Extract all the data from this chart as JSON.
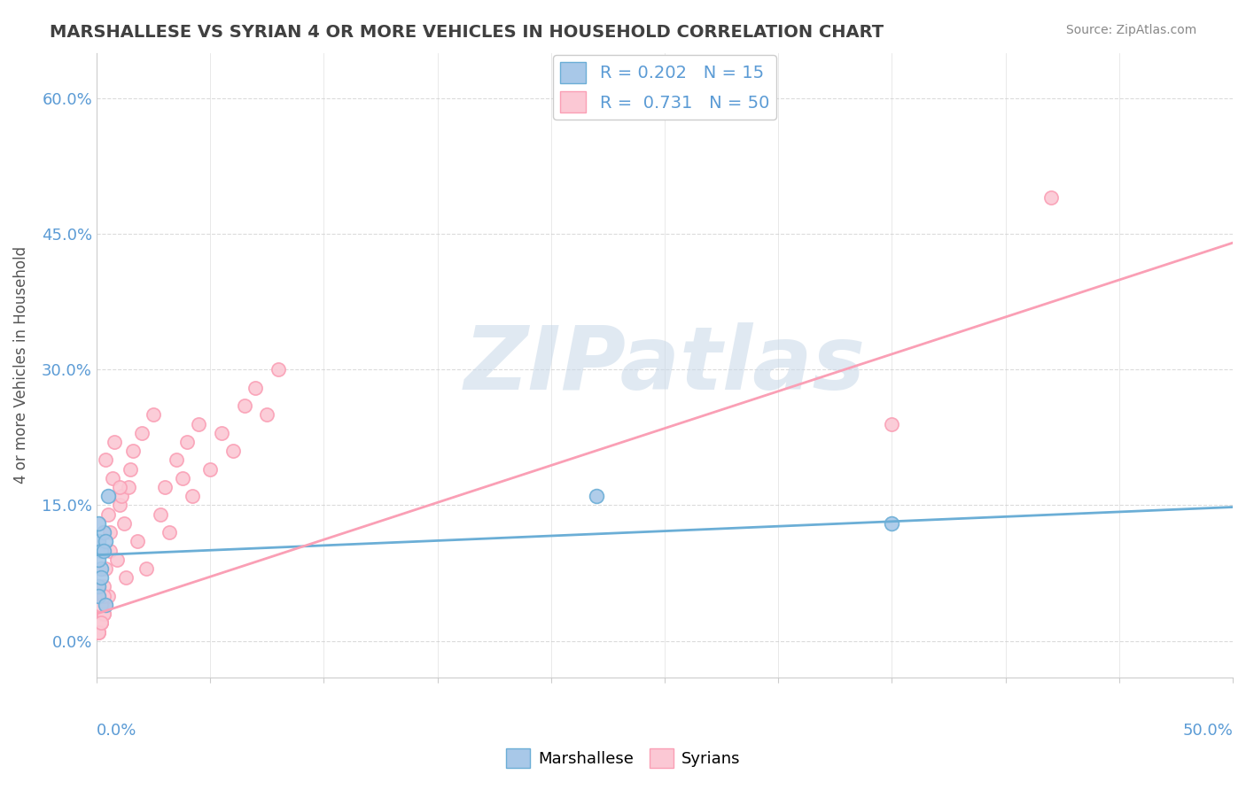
{
  "title": "MARSHALLESE VS SYRIAN 4 OR MORE VEHICLES IN HOUSEHOLD CORRELATION CHART",
  "source_text": "Source: ZipAtlas.com",
  "ylabel": "4 or more Vehicles in Household",
  "ytick_labels": [
    "0.0%",
    "15.0%",
    "30.0%",
    "45.0%",
    "60.0%"
  ],
  "ytick_values": [
    0.0,
    0.15,
    0.3,
    0.45,
    0.6
  ],
  "xmin": 0.0,
  "xmax": 0.5,
  "ymin": -0.04,
  "ymax": 0.65,
  "marshallese_color": "#6baed6",
  "marshallese_fill": "#a8c8e8",
  "syrian_color": "#fa9fb5",
  "syrian_fill": "#fbc8d4",
  "marshallese_R": 0.202,
  "marshallese_N": 15,
  "syrian_R": 0.731,
  "syrian_N": 50,
  "marshallese_x": [
    0.001,
    0.002,
    0.001,
    0.003,
    0.002,
    0.001,
    0.004,
    0.002,
    0.001,
    0.003,
    0.001,
    0.35,
    0.22,
    0.004,
    0.005
  ],
  "marshallese_y": [
    0.11,
    0.08,
    0.06,
    0.12,
    0.1,
    0.09,
    0.11,
    0.07,
    0.13,
    0.1,
    0.05,
    0.13,
    0.16,
    0.04,
    0.16
  ],
  "syrian_x": [
    0.001,
    0.002,
    0.003,
    0.001,
    0.004,
    0.002,
    0.001,
    0.003,
    0.005,
    0.002,
    0.004,
    0.006,
    0.003,
    0.002,
    0.005,
    0.007,
    0.006,
    0.003,
    0.004,
    0.008,
    0.009,
    0.01,
    0.012,
    0.011,
    0.013,
    0.015,
    0.014,
    0.016,
    0.018,
    0.02,
    0.022,
    0.025,
    0.028,
    0.03,
    0.032,
    0.035,
    0.038,
    0.04,
    0.042,
    0.045,
    0.05,
    0.055,
    0.06,
    0.065,
    0.07,
    0.075,
    0.08,
    0.35,
    0.42,
    0.01
  ],
  "syrian_y": [
    0.01,
    0.02,
    0.03,
    0.01,
    0.04,
    0.02,
    0.01,
    0.03,
    0.05,
    0.02,
    0.08,
    0.12,
    0.06,
    0.04,
    0.14,
    0.18,
    0.1,
    0.05,
    0.2,
    0.22,
    0.09,
    0.15,
    0.13,
    0.16,
    0.07,
    0.19,
    0.17,
    0.21,
    0.11,
    0.23,
    0.08,
    0.25,
    0.14,
    0.17,
    0.12,
    0.2,
    0.18,
    0.22,
    0.16,
    0.24,
    0.19,
    0.23,
    0.21,
    0.26,
    0.28,
    0.25,
    0.3,
    0.24,
    0.49,
    0.17
  ],
  "marshallese_line_x": [
    0.0,
    0.5
  ],
  "marshallese_line_y": [
    0.095,
    0.148
  ],
  "syrian_line_x": [
    0.0,
    0.5
  ],
  "syrian_line_y": [
    0.03,
    0.44
  ],
  "watermark": "ZIPatlas",
  "watermark_color": "#c8d8e8",
  "background_color": "#ffffff",
  "grid_color": "#cccccc",
  "title_color": "#404040",
  "axis_label_color": "#5b9bd5"
}
